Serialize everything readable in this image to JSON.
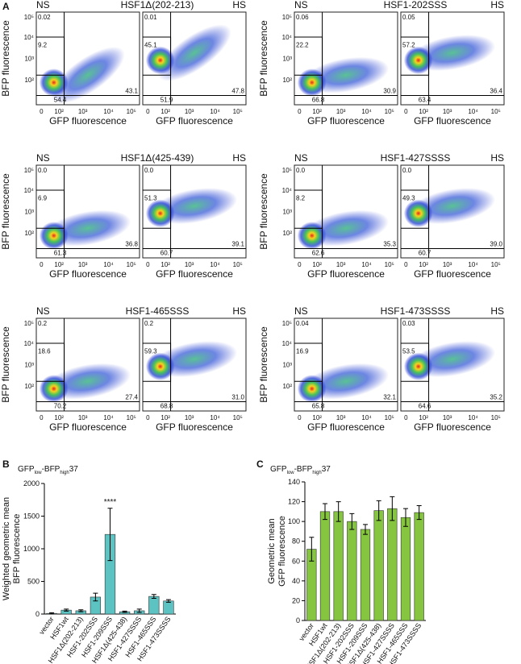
{
  "panel_labels": [
    "A",
    "B",
    "C"
  ],
  "flow": {
    "x_label": "GFP fluorescence",
    "y_label": "BFP fluorescence",
    "x_ticks": [
      "0",
      "10²",
      "10³",
      "10⁴",
      "10⁵"
    ],
    "y_ticks": [
      "10⁵",
      "10⁴",
      "10³",
      "10²"
    ],
    "conditions": [
      "NS",
      "HS"
    ],
    "plots": [
      {
        "title": "HSF1Δ(202-213)",
        "gates": [
          [
            "0.02",
            "9.2",
            "54.4",
            "43.1"
          ],
          [
            "0.01",
            "45.1",
            "51.9",
            "47.8"
          ]
        ]
      },
      {
        "title": "HSF1-202SSS",
        "gates": [
          [
            "0.06",
            "22.2",
            "66.8",
            "30.9"
          ],
          [
            "0.05",
            "57.2",
            "63.4",
            "36.4"
          ]
        ]
      },
      {
        "title": "HSF1Δ(425-439)",
        "gates": [
          [
            "0.0",
            "6.9",
            "61.3",
            "36.8"
          ],
          [
            "0.0",
            "51.3",
            "60.7",
            "39.1"
          ]
        ]
      },
      {
        "title": "HSF1-427SSSS",
        "gates": [
          [
            "0.0",
            "8.2",
            "62.6",
            "35.3"
          ],
          [
            "0.0",
            "49.3",
            "60.7",
            "39.0"
          ]
        ]
      },
      {
        "title": "HSF1-465SSS",
        "gates": [
          [
            "0.2",
            "18.6",
            "70.2",
            "27.4"
          ],
          [
            "0.2",
            "59.3",
            "68.8",
            "31.0"
          ]
        ]
      },
      {
        "title": "HSF1-473SSSS",
        "gates": [
          [
            "0.04",
            "16.9",
            "65.8",
            "32.1"
          ],
          [
            "0.03",
            "53.5",
            "64.6",
            "35.2"
          ]
        ]
      }
    ]
  },
  "chart_data": [
    {
      "type": "bar",
      "title_parts": [
        "GFP",
        "low",
        "-BFP",
        "high",
        "37"
      ],
      "ylabel": [
        "Weighted geometric mean",
        "BFP fluorescence"
      ],
      "categories": [
        "vector",
        "HSF1wt",
        "HSF1Δ(202-213)",
        "HSF1-202SSS",
        "HSF1-209SSS",
        "HSF1Δ(425-438)",
        "HSF1-427SSSS",
        "HSF1-465SSS",
        "HSF1-473SSSS"
      ],
      "values": [
        10,
        60,
        50,
        260,
        1220,
        35,
        50,
        270,
        200
      ],
      "errors": [
        10,
        15,
        15,
        60,
        400,
        10,
        25,
        30,
        20
      ],
      "color": "#5cc2c2",
      "ylim": [
        0,
        2000
      ],
      "yticks": [
        0,
        500,
        1000,
        1500,
        2000
      ],
      "annotations": [
        {
          "text": "****",
          "x": "HSF1-209SSS"
        }
      ]
    },
    {
      "type": "bar",
      "title_parts": [
        "GFP",
        "low",
        "-BFP",
        "high",
        "37"
      ],
      "ylabel": [
        "Geometric mean",
        "GFP fluorescence"
      ],
      "categories": [
        "vector",
        "HSF1wt",
        "HSF1Δ(202-213)",
        "HSF1-202SSS",
        "HSF1-209SSS",
        "HSF1Δ(425-438)",
        "HSF1-427SSSS",
        "HSF1-465SSS",
        "HSF1-473SSSS"
      ],
      "values": [
        72,
        110,
        110,
        100,
        92,
        111,
        113,
        104,
        109
      ],
      "errors": [
        12,
        8,
        10,
        8,
        5,
        10,
        12,
        9,
        7
      ],
      "color": "#86c540",
      "ylim": [
        0,
        140
      ],
      "yticks": [
        0,
        20,
        40,
        60,
        80,
        100,
        120,
        140
      ],
      "annotations": []
    }
  ]
}
